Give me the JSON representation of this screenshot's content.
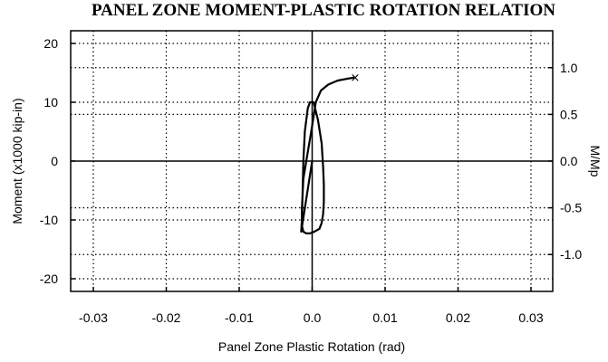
{
  "chart_data": {
    "type": "line",
    "title": "PANEL ZONE MOMENT-PLASTIC ROTATION RELATION",
    "xlabel": "Panel Zone Plastic Rotation (rad)",
    "ylabel": "Moment (x1000 kip-in)",
    "y2label": "M/Mp",
    "xlim": [
      -0.033,
      0.033
    ],
    "ylim": [
      -21,
      21
    ],
    "y2lim": [
      -1.395,
      1.395
    ],
    "x_ticks": [
      -0.03,
      -0.02,
      -0.01,
      0.0,
      0.01,
      0.02,
      0.03
    ],
    "x_tick_labels": [
      "-0.03",
      "-0.02",
      "-0.01",
      "0.0",
      "0.01",
      "0.02",
      "0.03"
    ],
    "y_ticks": [
      -20,
      -10,
      0,
      10,
      20
    ],
    "y_tick_labels": [
      "-20",
      "-10",
      "0",
      "10",
      "20"
    ],
    "y2_ticks": [
      -1.0,
      -0.5,
      0.0,
      0.5,
      1.0
    ],
    "y2_tick_labels": [
      "-1.0",
      "-0.5",
      "0.0",
      "0.5",
      "1.0"
    ],
    "grid": true,
    "series": [
      {
        "x": [
          0,
          -0.0015,
          -0.0014,
          -0.0013,
          -0.0012,
          -0.001,
          -0.0006,
          -0.0003,
          0.0002,
          0.0008,
          0.0013,
          0.0015,
          0.0016,
          0.0016,
          0.0015,
          0.0013,
          0.001,
          0.0003,
          -0.0003,
          -0.0008,
          -0.0012,
          -0.0014,
          -0.0014,
          -0.0012,
          0.0,
          0.0005,
          0.0012,
          0.0022,
          0.0035,
          0.0048,
          0.0058
        ],
        "y": [
          0,
          -12,
          -10,
          -5,
          0,
          5,
          9,
          10,
          10,
          7,
          3,
          -1,
          -4,
          -7,
          -9,
          -10.5,
          -11.5,
          -12,
          -12.3,
          -12.3,
          -12,
          -11,
          -8,
          -3,
          6,
          10,
          12,
          13,
          13.7,
          14,
          14.2
        ]
      }
    ],
    "annotations": [
      {
        "text": "×",
        "x": 0.0059,
        "y": 14.3
      }
    ]
  }
}
